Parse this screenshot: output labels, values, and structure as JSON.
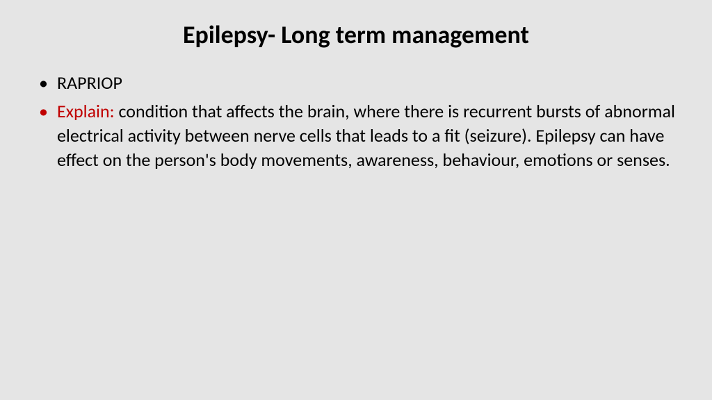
{
  "slide": {
    "title": "Epilepsy- Long term management",
    "background_color": "#e5e5e5",
    "title_fontsize": 36,
    "title_color": "#000000",
    "body_fontsize": 26,
    "body_color": "#000000",
    "highlight_color": "#c00000",
    "bullets": [
      {
        "text": "RAPRIOP",
        "bullet_color": "black"
      },
      {
        "prefix": "Explain: ",
        "prefix_color": "red",
        "text": "condition that affects the brain, where there is recurrent bursts of abnormal electrical activity between nerve cells that leads to a fit (seizure). Epilepsy can have effect on the person's body movements, awareness, behaviour, emotions or senses.",
        "bullet_color": "red"
      }
    ]
  }
}
